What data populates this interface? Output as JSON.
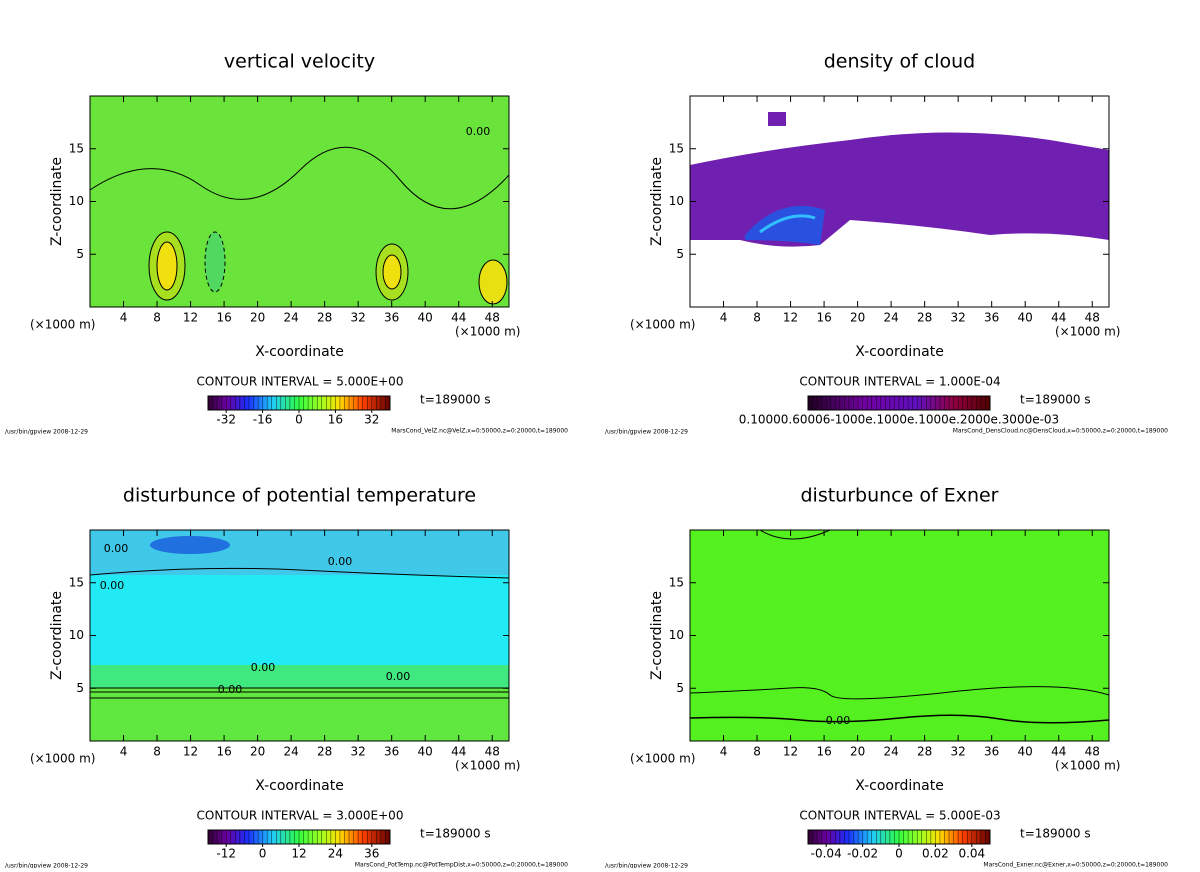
{
  "chart_data": [
    {
      "type": "contour",
      "title": "vertical velocity",
      "xlabel": "X-coordinate",
      "ylabel": "Z-coordinate",
      "x_unit": "(×1000 m)",
      "xlim": [
        0,
        50
      ],
      "ylim": [
        0,
        20
      ],
      "xticks": [
        4,
        8,
        12,
        16,
        20,
        24,
        28,
        32,
        36,
        40,
        44,
        48
      ],
      "yticks": [
        5,
        10,
        15
      ],
      "contour_interval": "CONTOUR INTERVAL = 5.000E+00",
      "time_label": "t=189000 s",
      "colorbar": {
        "lim": [
          -40,
          40
        ],
        "ticks": [
          -32,
          -16,
          0,
          16,
          32
        ]
      },
      "footer_left": "/usr/bin/gpview  2008-12-29",
      "footer_right": "MarsCond_VelZ.nc@VelZ,x=0:50000,z=0:20000,t=189000",
      "annotations": [
        "0.00"
      ]
    },
    {
      "type": "contour",
      "title": "density of cloud",
      "xlabel": "X-coordinate",
      "ylabel": "Z-coordinate",
      "x_unit": "(×1000 m)",
      "xlim": [
        0,
        50
      ],
      "ylim": [
        0,
        20
      ],
      "xticks": [
        4,
        8,
        12,
        16,
        20,
        24,
        28,
        32,
        36,
        40,
        44,
        48
      ],
      "yticks": [
        5,
        10,
        15
      ],
      "contour_interval": "CONTOUR INTERVAL = 1.000E-04",
      "time_label": "t=189000 s",
      "colorbar": {
        "label": "0.10000.60006-1000e.1000e.1000e.2000e.3000e-03"
      },
      "footer_left": "/usr/bin/gpview  2008-12-29",
      "footer_right": "MarsCond_DensCloud.nc@DensCloud,x=0:50000,z=0:20000,t=189000",
      "annotations": []
    },
    {
      "type": "contour",
      "title": "disturbunce of potential temperature",
      "xlabel": "X-coordinate",
      "ylabel": "Z-coordinate",
      "x_unit": "(×1000 m)",
      "xlim": [
        0,
        50
      ],
      "ylim": [
        0,
        20
      ],
      "xticks": [
        4,
        8,
        12,
        16,
        20,
        24,
        28,
        32,
        36,
        40,
        44,
        48
      ],
      "yticks": [
        5,
        10,
        15
      ],
      "contour_interval": "CONTOUR INTERVAL = 3.000E+00",
      "time_label": "t=189000 s",
      "colorbar": {
        "lim": [
          -18,
          42
        ],
        "ticks": [
          -12,
          0,
          12,
          24,
          36
        ]
      },
      "footer_left": "/usr/bin/gpview  2008-12-29",
      "footer_right": "MarsCond_PotTemp.nc@PotTempDist,x=0:50000,z=0:20000,t=189000",
      "annotations": [
        "0.00",
        "0.00",
        "0.00",
        "0.00",
        "0.00",
        "0.00"
      ]
    },
    {
      "type": "contour",
      "title": "disturbunce of Exner",
      "xlabel": "X-coordinate",
      "ylabel": "Z-coordinate",
      "x_unit": "(×1000 m)",
      "xlim": [
        0,
        50
      ],
      "ylim": [
        0,
        20
      ],
      "xticks": [
        4,
        8,
        12,
        16,
        20,
        24,
        28,
        32,
        36,
        40,
        44,
        48
      ],
      "yticks": [
        5,
        10,
        15
      ],
      "contour_interval": "CONTOUR INTERVAL = 5.000E-03",
      "time_label": "t=189000 s",
      "colorbar": {
        "lim": [
          -0.05,
          0.05
        ],
        "ticks": [
          -0.04,
          -0.02,
          0,
          0.02,
          0.04
        ]
      },
      "footer_left": "/usr/bin/gpview  2008-12-29",
      "footer_right": "MarsCond_Exner.nc@Exner,x=0:50000,z=0:20000,t=189000",
      "annotations": [
        "0.00"
      ]
    }
  ]
}
